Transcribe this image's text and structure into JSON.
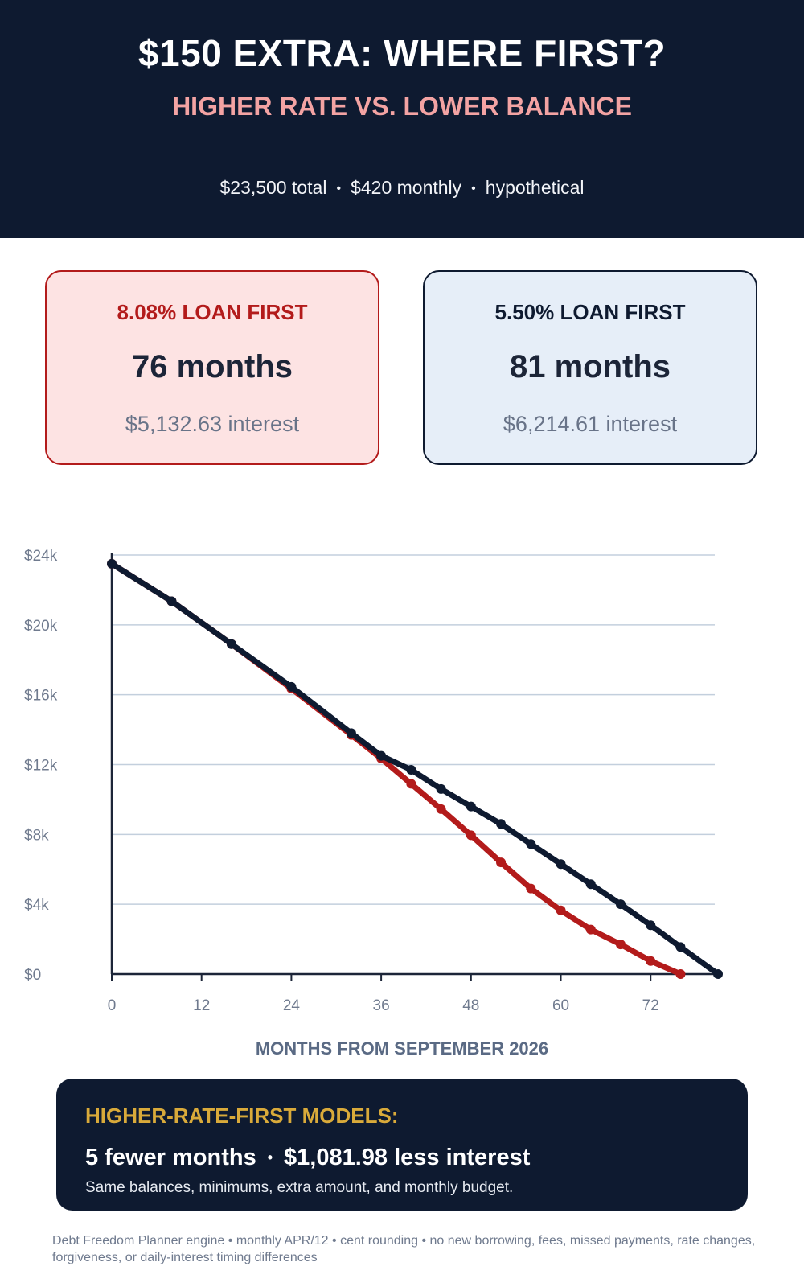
{
  "header": {
    "title": "$150 EXTRA: WHERE FIRST?",
    "subtitle": "HIGHER RATE VS. LOWER BALANCE",
    "meta": [
      "$23,500 total",
      "$420 monthly",
      "hypothetical"
    ],
    "meta_separator": "•"
  },
  "cards": [
    {
      "label": "8.08% LOAN FIRST",
      "months": "76 months",
      "interest": "$5,132.63 interest"
    },
    {
      "label": "5.50% LOAN FIRST",
      "months": "81 months",
      "interest": "$6,214.61 interest"
    }
  ],
  "chart_data": {
    "type": "line",
    "title": "",
    "xlabel": "MONTHS FROM SEPTEMBER 2026",
    "ylabel": "",
    "xlim": [
      0,
      81
    ],
    "ylim": [
      0,
      24000
    ],
    "x_ticks": [
      0,
      12,
      24,
      36,
      48,
      60,
      72
    ],
    "x_tick_labels": [
      "0",
      "12",
      "24",
      "36",
      "48",
      "60",
      "72"
    ],
    "y_ticks": [
      0,
      4000,
      8000,
      12000,
      16000,
      20000,
      24000
    ],
    "y_tick_labels": [
      "$0",
      "$4k",
      "$8k",
      "$12k",
      "$16k",
      "$20k",
      "$24k"
    ],
    "grid": true,
    "legend": "none",
    "series": [
      {
        "color": "#b31b1b",
        "x": [
          0,
          8,
          16,
          24,
          32,
          36,
          40,
          44,
          48,
          52,
          56,
          60,
          64,
          68,
          72,
          76
        ],
        "y": [
          23500,
          21350,
          18900,
          16350,
          13700,
          12350,
          10900,
          9450,
          7950,
          6400,
          4900,
          3650,
          2550,
          1700,
          750,
          0
        ]
      },
      {
        "color": "#0e1a30",
        "x": [
          0,
          8,
          16,
          24,
          32,
          36,
          40,
          44,
          48,
          52,
          56,
          60,
          64,
          68,
          72,
          76,
          81
        ],
        "y": [
          23500,
          21350,
          18900,
          16450,
          13800,
          12500,
          11700,
          10600,
          9600,
          8600,
          7450,
          6300,
          5150,
          4000,
          2800,
          1550,
          0
        ]
      }
    ]
  },
  "summary": {
    "heading": "HIGHER-RATE-FIRST MODELS:",
    "main_left": "5 fewer months",
    "main_sep": "•",
    "main_right": "$1,081.98 less interest",
    "sub": "Same balances, minimums, extra amount, and monthly budget."
  },
  "footer": "Debt Freedom Planner engine • monthly APR/12 • cent rounding • no new borrowing, fees, missed payments, rate changes, forgiveness, or daily-interest timing differences",
  "colors": {
    "navy": "#0e1a30",
    "red": "#b31b1b",
    "pink_title": "#f3a3a3",
    "gold": "#d9aa3a",
    "card_a_bg": "#fde3e3",
    "card_b_bg": "#e6eef8",
    "card_b_label": "#0e1a30",
    "grid": "#c3cfdd",
    "axis": "#1c2538",
    "tick_text": "#6f7a8e"
  }
}
